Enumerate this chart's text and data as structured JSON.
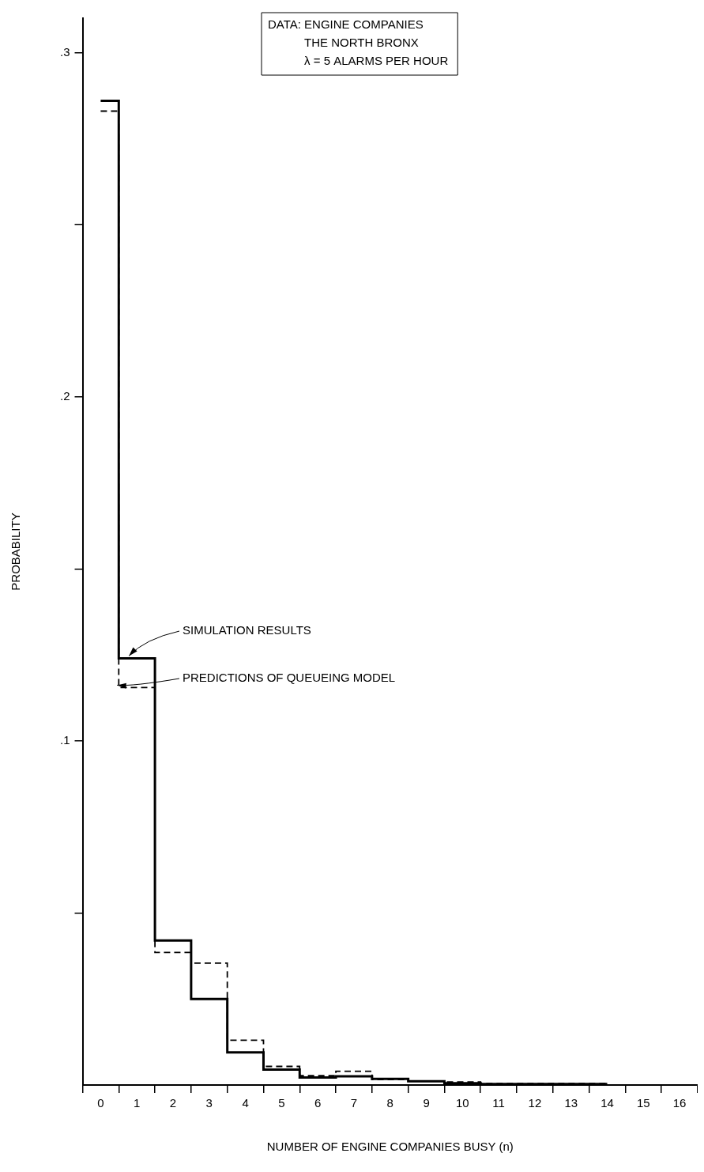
{
  "chart_data": {
    "type": "step",
    "xlabel": "NUMBER OF ENGINE COMPANIES BUSY (n)",
    "ylabel": "PROBABILITY",
    "categories": [
      "0",
      "1",
      "2",
      "3",
      "4",
      "5",
      "6",
      "7",
      "8",
      "9",
      "10",
      "11",
      "12",
      "13",
      "14",
      "15",
      "16"
    ],
    "series": [
      {
        "name": "SIMULATION RESULTS",
        "color": "#000000",
        "line_style": "solid",
        "values": [
          0.286,
          0.124,
          0.042,
          0.025,
          0.0095,
          0.0045,
          0.0022,
          0.0025,
          0.0018,
          0.0011,
          0.0005,
          0.0003,
          0.0003,
          0.0003,
          0.0003,
          null,
          null
        ]
      },
      {
        "name": "PREDICTIONS OF QUEUEING MODEL",
        "color": "#000000",
        "line_style": "dashed",
        "values": [
          0.283,
          0.1155,
          0.0385,
          0.0354,
          0.013,
          0.0054,
          0.0027,
          0.004,
          0.0016,
          0.0011,
          0.0009,
          0.0004,
          0.0004,
          0.0004,
          0.0004,
          null,
          null
        ]
      }
    ],
    "ylim": [
      0,
      0.31
    ],
    "yticks": [
      {
        "value": 0.05,
        "label": null
      },
      {
        "value": 0.1,
        "label": ".1"
      },
      {
        "value": 0.15,
        "label": null
      },
      {
        "value": 0.2,
        "label": ".2"
      },
      {
        "value": 0.25,
        "label": null
      },
      {
        "value": 0.3,
        "label": ".3"
      }
    ],
    "grid": false,
    "legend": false,
    "annotations": [
      "DATA: ENGINE COMPANIES",
      "THE NORTH BRONX",
      "λ = 5 ALARMS PER HOUR"
    ]
  }
}
